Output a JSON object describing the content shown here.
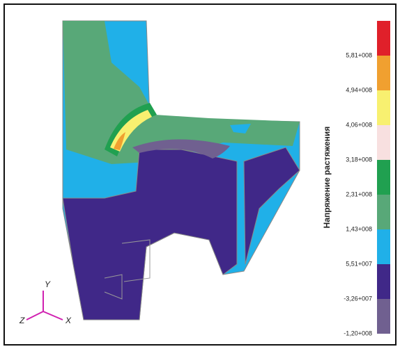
{
  "legend": {
    "title": "Напряжение растяжения",
    "labels": [
      "5,81+008",
      "4,94+008",
      "4,06+008",
      "3,18+008",
      "2,31+008",
      "1,43+008",
      "5,51+007",
      "-3,26+007",
      "-1,20+008"
    ],
    "colors": [
      "#e0202a",
      "#f0a030",
      "#f8f070",
      "#f8e0e0",
      "#20a050",
      "#58a878",
      "#20b0e8",
      "#402888",
      "#706090"
    ]
  },
  "triad": {
    "y": "Y",
    "z": "Z",
    "x": "X"
  }
}
